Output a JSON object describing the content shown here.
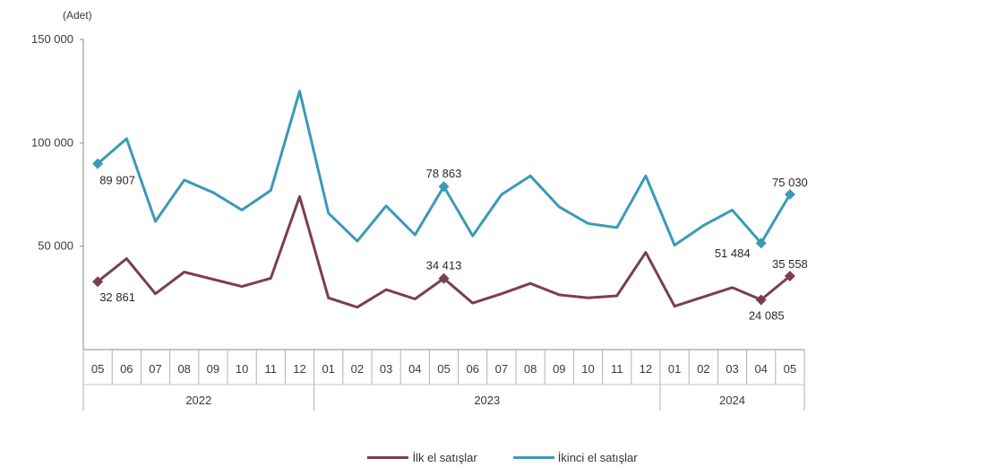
{
  "colors": {
    "series1": "#7a3e52",
    "series2": "#3a9ab8",
    "axis": "#8a8a8a"
  },
  "chart_data": {
    "type": "line",
    "unit_label": "(Adet)",
    "categories": [
      "05",
      "06",
      "07",
      "08",
      "09",
      "10",
      "11",
      "12",
      "01",
      "02",
      "03",
      "04",
      "05",
      "06",
      "07",
      "08",
      "09",
      "10",
      "11",
      "12",
      "01",
      "02",
      "03",
      "04",
      "05"
    ],
    "year_groups": [
      {
        "label": "2022",
        "start": 0,
        "end": 7
      },
      {
        "label": "2023",
        "start": 8,
        "end": 19
      },
      {
        "label": "2024",
        "start": 20,
        "end": 24
      }
    ],
    "ylim": [
      0,
      150000
    ],
    "yticks": [
      {
        "value": 50000,
        "label": "50 000"
      },
      {
        "value": 100000,
        "label": "100 000"
      },
      {
        "value": 150000,
        "label": "150 000"
      }
    ],
    "series": [
      {
        "name": "İlk el satışlar",
        "values": [
          32861,
          44000,
          27000,
          37500,
          34000,
          30500,
          34500,
          74000,
          25000,
          20500,
          29000,
          24500,
          34413,
          22500,
          27000,
          32000,
          26500,
          25000,
          26000,
          47000,
          21000,
          25500,
          30000,
          24085,
          35558
        ],
        "labels": [
          {
            "index": 0,
            "text": "32 861"
          },
          {
            "index": 12,
            "text": "34 413"
          },
          {
            "index": 23,
            "text": "24 085"
          },
          {
            "index": 24,
            "text": "35 558"
          }
        ]
      },
      {
        "name": "İkinci el satışlar",
        "values": [
          89907,
          102000,
          62000,
          82000,
          76000,
          67500,
          77000,
          125000,
          66000,
          52500,
          69500,
          55500,
          78863,
          55000,
          75000,
          84000,
          69000,
          61000,
          59000,
          84000,
          50500,
          60000,
          67500,
          51484,
          75030
        ],
        "labels": [
          {
            "index": 0,
            "text": "89 907"
          },
          {
            "index": 12,
            "text": "78 863"
          },
          {
            "index": 23,
            "text": "51 484"
          },
          {
            "index": 24,
            "text": "75 030"
          }
        ]
      }
    ]
  }
}
